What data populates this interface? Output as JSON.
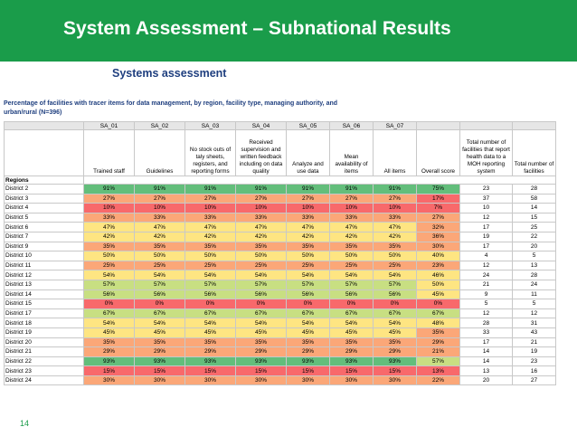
{
  "slide": {
    "title": "System Assessment – Subnational Results",
    "page_number": "14"
  },
  "sheet": {
    "title": "Systems assessment",
    "description": "Percentage of facilities with tracer items for data management, by region, facility type, managing authority, and urban/rural (N=396)",
    "codes": [
      "SA_01",
      "SA_02",
      "SA_03",
      "SA_04",
      "SA_05",
      "SA_06",
      "SA_07",
      "",
      "",
      ""
    ],
    "labels": [
      "Trained staff",
      "Guidelines",
      "No stock outs of taly sheets, registers, and reporting forms",
      "Received supervision and written feedback including on data quality",
      "Analyze and use data",
      "Mean availability of items",
      "All items",
      "Overall score",
      "Total number of facilities that report health data to a MOH reporting system",
      "Total number of facilities"
    ],
    "regions_label": "Regions",
    "colors": {
      "red": "#f8696b",
      "orange": "#fba778",
      "yellow": "#fee582",
      "light_green": "#c8df82",
      "green": "#63be7b"
    },
    "rows": [
      {
        "district": "District 2",
        "values": [
          "91%",
          "91%",
          "91%",
          "91%",
          "91%",
          "91%",
          "91%",
          "75%",
          "23",
          "28"
        ]
      },
      {
        "district": "District 3",
        "values": [
          "27%",
          "27%",
          "27%",
          "27%",
          "27%",
          "27%",
          "27%",
          "17%",
          "37",
          "58"
        ]
      },
      {
        "district": "District 4",
        "values": [
          "10%",
          "10%",
          "10%",
          "10%",
          "10%",
          "10%",
          "10%",
          "7%",
          "10",
          "14"
        ]
      },
      {
        "district": "District 5",
        "values": [
          "33%",
          "33%",
          "33%",
          "33%",
          "33%",
          "33%",
          "33%",
          "27%",
          "12",
          "15"
        ]
      },
      {
        "district": "District 6",
        "values": [
          "47%",
          "47%",
          "47%",
          "47%",
          "47%",
          "47%",
          "47%",
          "32%",
          "17",
          "25"
        ]
      },
      {
        "district": "District 7",
        "values": [
          "42%",
          "42%",
          "42%",
          "42%",
          "42%",
          "42%",
          "42%",
          "36%",
          "19",
          "22"
        ]
      },
      {
        "district": "District 9",
        "values": [
          "35%",
          "35%",
          "35%",
          "35%",
          "35%",
          "35%",
          "35%",
          "30%",
          "17",
          "20"
        ]
      },
      {
        "district": "District 10",
        "values": [
          "50%",
          "50%",
          "50%",
          "50%",
          "50%",
          "50%",
          "50%",
          "40%",
          "4",
          "5"
        ]
      },
      {
        "district": "District 11",
        "values": [
          "25%",
          "25%",
          "25%",
          "25%",
          "25%",
          "25%",
          "25%",
          "23%",
          "12",
          "13"
        ]
      },
      {
        "district": "District 12",
        "values": [
          "54%",
          "54%",
          "54%",
          "54%",
          "54%",
          "54%",
          "54%",
          "46%",
          "24",
          "28"
        ]
      },
      {
        "district": "District 13",
        "values": [
          "57%",
          "57%",
          "57%",
          "57%",
          "57%",
          "57%",
          "57%",
          "50%",
          "21",
          "24"
        ]
      },
      {
        "district": "District 14",
        "values": [
          "56%",
          "56%",
          "56%",
          "56%",
          "56%",
          "56%",
          "56%",
          "45%",
          "9",
          "11"
        ]
      },
      {
        "district": "District 15",
        "values": [
          "0%",
          "0%",
          "0%",
          "0%",
          "0%",
          "0%",
          "0%",
          "0%",
          "5",
          "5"
        ]
      },
      {
        "district": "District 17",
        "values": [
          "67%",
          "67%",
          "67%",
          "67%",
          "67%",
          "67%",
          "67%",
          "67%",
          "12",
          "12"
        ]
      },
      {
        "district": "District 18",
        "values": [
          "54%",
          "54%",
          "54%",
          "54%",
          "54%",
          "54%",
          "54%",
          "48%",
          "28",
          "31"
        ]
      },
      {
        "district": "District 19",
        "values": [
          "45%",
          "45%",
          "45%",
          "45%",
          "45%",
          "45%",
          "45%",
          "35%",
          "33",
          "43"
        ]
      },
      {
        "district": "District 20",
        "values": [
          "35%",
          "35%",
          "35%",
          "35%",
          "35%",
          "35%",
          "35%",
          "29%",
          "17",
          "21"
        ]
      },
      {
        "district": "District 21",
        "values": [
          "29%",
          "29%",
          "29%",
          "29%",
          "29%",
          "29%",
          "29%",
          "21%",
          "14",
          "19"
        ]
      },
      {
        "district": "District 22",
        "values": [
          "93%",
          "93%",
          "93%",
          "93%",
          "93%",
          "93%",
          "93%",
          "57%",
          "14",
          "23"
        ]
      },
      {
        "district": "District 23",
        "values": [
          "15%",
          "15%",
          "15%",
          "15%",
          "15%",
          "15%",
          "15%",
          "13%",
          "13",
          "16"
        ]
      },
      {
        "district": "District 24",
        "values": [
          "30%",
          "30%",
          "30%",
          "30%",
          "30%",
          "30%",
          "30%",
          "22%",
          "20",
          "27"
        ]
      }
    ]
  }
}
